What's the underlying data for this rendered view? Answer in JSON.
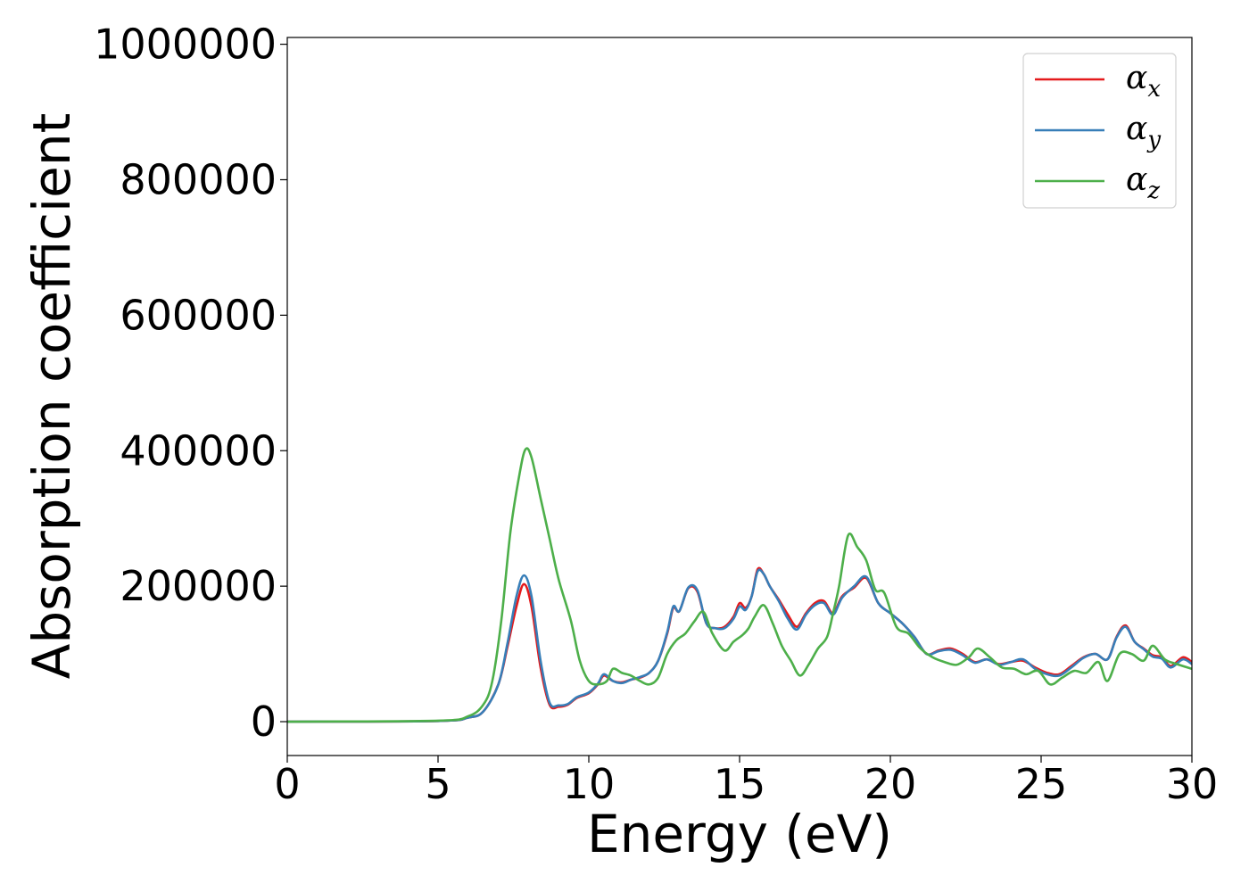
{
  "chart_data": {
    "type": "line",
    "title": "",
    "xlabel": "Energy (eV)",
    "ylabel": "Absorption coefficient",
    "xlim": [
      0,
      30
    ],
    "ylim": [
      -50000,
      1010000
    ],
    "xticks": [
      0,
      5,
      10,
      15,
      20,
      25,
      30
    ],
    "yticks": [
      0,
      200000,
      400000,
      600000,
      800000,
      1000000
    ],
    "x_tick_labels": [
      "0",
      "5",
      "10",
      "15",
      "20",
      "25",
      "30"
    ],
    "y_tick_labels": [
      "0",
      "200000",
      "400000",
      "600000",
      "800000",
      "1000000"
    ],
    "grid": false,
    "legend_position": "top-right",
    "series": [
      {
        "name": "α",
        "subscript": "x",
        "color": "#e41a1c",
        "points": [
          [
            0,
            0
          ],
          [
            5,
            1000
          ],
          [
            6,
            6000
          ],
          [
            6.5,
            15000
          ],
          [
            7,
            55000
          ],
          [
            7.3,
            110000
          ],
          [
            7.6,
            170000
          ],
          [
            7.85,
            203000
          ],
          [
            8.1,
            170000
          ],
          [
            8.4,
            80000
          ],
          [
            8.7,
            25000
          ],
          [
            9,
            22000
          ],
          [
            9.3,
            25000
          ],
          [
            9.6,
            35000
          ],
          [
            10,
            42000
          ],
          [
            10.3,
            55000
          ],
          [
            10.5,
            68000
          ],
          [
            10.8,
            60000
          ],
          [
            11.1,
            58000
          ],
          [
            11.4,
            62000
          ],
          [
            11.7,
            65000
          ],
          [
            12,
            72000
          ],
          [
            12.3,
            90000
          ],
          [
            12.6,
            130000
          ],
          [
            12.8,
            168000
          ],
          [
            13,
            163000
          ],
          [
            13.3,
            197000
          ],
          [
            13.6,
            192000
          ],
          [
            13.9,
            145000
          ],
          [
            14.2,
            138000
          ],
          [
            14.5,
            140000
          ],
          [
            14.8,
            155000
          ],
          [
            15,
            175000
          ],
          [
            15.2,
            168000
          ],
          [
            15.4,
            185000
          ],
          [
            15.6,
            225000
          ],
          [
            15.8,
            218000
          ],
          [
            16,
            200000
          ],
          [
            16.3,
            180000
          ],
          [
            16.6,
            158000
          ],
          [
            16.9,
            140000
          ],
          [
            17.2,
            160000
          ],
          [
            17.5,
            175000
          ],
          [
            17.8,
            178000
          ],
          [
            18.1,
            160000
          ],
          [
            18.4,
            185000
          ],
          [
            18.8,
            198000
          ],
          [
            19.2,
            212000
          ],
          [
            19.6,
            175000
          ],
          [
            20,
            160000
          ],
          [
            20.4,
            145000
          ],
          [
            20.8,
            125000
          ],
          [
            21.2,
            100000
          ],
          [
            21.6,
            105000
          ],
          [
            22,
            108000
          ],
          [
            22.4,
            100000
          ],
          [
            22.8,
            88000
          ],
          [
            23.2,
            92000
          ],
          [
            23.6,
            85000
          ],
          [
            24,
            88000
          ],
          [
            24.4,
            90000
          ],
          [
            24.8,
            80000
          ],
          [
            25.2,
            72000
          ],
          [
            25.6,
            70000
          ],
          [
            26,
            82000
          ],
          [
            26.4,
            95000
          ],
          [
            26.8,
            100000
          ],
          [
            27.2,
            92000
          ],
          [
            27.5,
            125000
          ],
          [
            27.8,
            142000
          ],
          [
            28.1,
            118000
          ],
          [
            28.4,
            108000
          ],
          [
            28.7,
            98000
          ],
          [
            29,
            95000
          ],
          [
            29.3,
            82000
          ],
          [
            29.7,
            95000
          ],
          [
            30,
            88000
          ]
        ]
      },
      {
        "name": "α",
        "subscript": "y",
        "color": "#377eb8",
        "points": [
          [
            0,
            0
          ],
          [
            5,
            1000
          ],
          [
            6,
            6000
          ],
          [
            6.5,
            15000
          ],
          [
            7,
            55000
          ],
          [
            7.3,
            115000
          ],
          [
            7.6,
            185000
          ],
          [
            7.85,
            216000
          ],
          [
            8.1,
            185000
          ],
          [
            8.4,
            90000
          ],
          [
            8.7,
            28000
          ],
          [
            9,
            24000
          ],
          [
            9.3,
            26000
          ],
          [
            9.6,
            36000
          ],
          [
            10,
            43000
          ],
          [
            10.3,
            56000
          ],
          [
            10.5,
            70000
          ],
          [
            10.8,
            60000
          ],
          [
            11.1,
            57000
          ],
          [
            11.4,
            62000
          ],
          [
            11.7,
            66000
          ],
          [
            12,
            72000
          ],
          [
            12.3,
            90000
          ],
          [
            12.6,
            132000
          ],
          [
            12.8,
            170000
          ],
          [
            13,
            163000
          ],
          [
            13.3,
            198000
          ],
          [
            13.6,
            194000
          ],
          [
            13.9,
            145000
          ],
          [
            14.2,
            138000
          ],
          [
            14.5,
            138000
          ],
          [
            14.8,
            152000
          ],
          [
            15,
            170000
          ],
          [
            15.2,
            165000
          ],
          [
            15.4,
            185000
          ],
          [
            15.6,
            222000
          ],
          [
            15.8,
            218000
          ],
          [
            16,
            200000
          ],
          [
            16.3,
            178000
          ],
          [
            16.6,
            152000
          ],
          [
            16.9,
            136000
          ],
          [
            17.2,
            158000
          ],
          [
            17.5,
            172000
          ],
          [
            17.8,
            175000
          ],
          [
            18.1,
            158000
          ],
          [
            18.4,
            183000
          ],
          [
            18.8,
            200000
          ],
          [
            19.2,
            214000
          ],
          [
            19.6,
            175000
          ],
          [
            20,
            160000
          ],
          [
            20.4,
            145000
          ],
          [
            20.8,
            125000
          ],
          [
            21.2,
            100000
          ],
          [
            21.6,
            104000
          ],
          [
            22,
            106000
          ],
          [
            22.4,
            98000
          ],
          [
            22.8,
            87000
          ],
          [
            23.2,
            92000
          ],
          [
            23.6,
            84000
          ],
          [
            24,
            88000
          ],
          [
            24.4,
            92000
          ],
          [
            24.8,
            78000
          ],
          [
            25.2,
            70000
          ],
          [
            25.6,
            68000
          ],
          [
            26,
            80000
          ],
          [
            26.4,
            94000
          ],
          [
            26.8,
            100000
          ],
          [
            27.2,
            92000
          ],
          [
            27.5,
            124000
          ],
          [
            27.8,
            140000
          ],
          [
            28.1,
            118000
          ],
          [
            28.4,
            107000
          ],
          [
            28.7,
            96000
          ],
          [
            29,
            93000
          ],
          [
            29.3,
            80000
          ],
          [
            29.7,
            92000
          ],
          [
            30,
            85000
          ]
        ]
      },
      {
        "name": "α",
        "subscript": "z",
        "color": "#4daf4a",
        "points": [
          [
            0,
            0
          ],
          [
            5,
            1500
          ],
          [
            6,
            8000
          ],
          [
            6.5,
            25000
          ],
          [
            6.8,
            60000
          ],
          [
            7.1,
            150000
          ],
          [
            7.4,
            280000
          ],
          [
            7.7,
            365000
          ],
          [
            7.9,
            402000
          ],
          [
            8.1,
            390000
          ],
          [
            8.4,
            330000
          ],
          [
            8.7,
            270000
          ],
          [
            9,
            210000
          ],
          [
            9.4,
            150000
          ],
          [
            9.7,
            90000
          ],
          [
            10,
            60000
          ],
          [
            10.3,
            55000
          ],
          [
            10.6,
            60000
          ],
          [
            10.8,
            78000
          ],
          [
            11.1,
            72000
          ],
          [
            11.4,
            68000
          ],
          [
            11.7,
            60000
          ],
          [
            12,
            55000
          ],
          [
            12.3,
            65000
          ],
          [
            12.6,
            100000
          ],
          [
            12.9,
            120000
          ],
          [
            13.2,
            130000
          ],
          [
            13.5,
            148000
          ],
          [
            13.8,
            162000
          ],
          [
            14.1,
            130000
          ],
          [
            14.5,
            105000
          ],
          [
            14.8,
            118000
          ],
          [
            15.1,
            128000
          ],
          [
            15.3,
            138000
          ],
          [
            15.5,
            155000
          ],
          [
            15.8,
            172000
          ],
          [
            16.1,
            145000
          ],
          [
            16.4,
            112000
          ],
          [
            16.7,
            90000
          ],
          [
            17,
            68000
          ],
          [
            17.3,
            85000
          ],
          [
            17.6,
            108000
          ],
          [
            17.9,
            125000
          ],
          [
            18.1,
            160000
          ],
          [
            18.3,
            200000
          ],
          [
            18.6,
            275000
          ],
          [
            18.9,
            258000
          ],
          [
            19.2,
            238000
          ],
          [
            19.5,
            195000
          ],
          [
            19.8,
            190000
          ],
          [
            20.2,
            140000
          ],
          [
            20.6,
            130000
          ],
          [
            21,
            108000
          ],
          [
            21.4,
            95000
          ],
          [
            21.8,
            88000
          ],
          [
            22.2,
            84000
          ],
          [
            22.6,
            95000
          ],
          [
            22.9,
            108000
          ],
          [
            23.3,
            95000
          ],
          [
            23.7,
            80000
          ],
          [
            24.1,
            78000
          ],
          [
            24.5,
            70000
          ],
          [
            24.9,
            75000
          ],
          [
            25.3,
            55000
          ],
          [
            25.7,
            65000
          ],
          [
            26.1,
            75000
          ],
          [
            26.5,
            72000
          ],
          [
            26.9,
            88000
          ],
          [
            27.2,
            60000
          ],
          [
            27.6,
            100000
          ],
          [
            28,
            100000
          ],
          [
            28.4,
            90000
          ],
          [
            28.7,
            112000
          ],
          [
            29.1,
            92000
          ],
          [
            29.5,
            85000
          ],
          [
            30,
            78000
          ]
        ]
      }
    ]
  }
}
